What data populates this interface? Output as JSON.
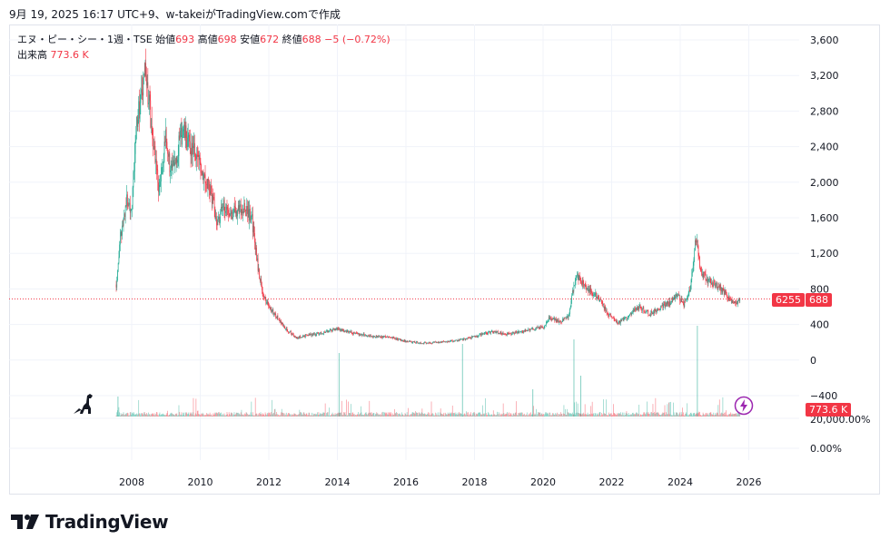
{
  "caption": "9月 19, 2025 16:17 UTC+9、w-takeiがTradingView.comで作成",
  "legend": {
    "symbol": "エヌ・ピー・シー・1週・TSE",
    "open_label": "始値",
    "open": "693",
    "high_label": "高値",
    "high": "698",
    "low_label": "安値",
    "low": "672",
    "close_label": "終値",
    "close": "688",
    "change": "−5 (−0.72%)"
  },
  "volume_legend": {
    "label": "出来高",
    "value": "773.6 K"
  },
  "price_badges": {
    "code": "6255",
    "price": "688",
    "volume": "773.6 K"
  },
  "brand": "TradingView",
  "colors": {
    "up": "#22ab94",
    "down": "#f23645",
    "grid": "#f0f3fa",
    "text": "#131722"
  },
  "icons": [
    "dino-icon",
    "lightning-icon",
    "tradingview-logo-icon"
  ],
  "chart_data": {
    "type": "candlestick",
    "x_ticks": [
      "2008",
      "2010",
      "2012",
      "2014",
      "2016",
      "2018",
      "2020",
      "2022",
      "2024",
      "2026"
    ],
    "y_ticks": [
      "3,600",
      "3,200",
      "2,800",
      "2,400",
      "2,000",
      "1,600",
      "1,200",
      "800",
      "400",
      "0",
      "−400"
    ],
    "volume_axis_ticks": [
      "20,000.00%",
      "0.00%"
    ],
    "ylim": [
      -400,
      3600
    ],
    "last_price": 688,
    "price_path": [
      [
        2007.55,
        850
      ],
      [
        2007.65,
        1300
      ],
      [
        2007.85,
        1800
      ],
      [
        2008.0,
        1700
      ],
      [
        2008.15,
        2700
      ],
      [
        2008.3,
        3000
      ],
      [
        2008.4,
        3250
      ],
      [
        2008.5,
        2900
      ],
      [
        2008.65,
        2400
      ],
      [
        2008.8,
        1900
      ],
      [
        2009.0,
        2500
      ],
      [
        2009.15,
        2100
      ],
      [
        2009.3,
        2300
      ],
      [
        2009.5,
        2600
      ],
      [
        2009.7,
        2400
      ],
      [
        2009.9,
        2300
      ],
      [
        2010.1,
        2100
      ],
      [
        2010.3,
        1900
      ],
      [
        2010.5,
        1550
      ],
      [
        2010.7,
        1750
      ],
      [
        2010.9,
        1650
      ],
      [
        2011.1,
        1700
      ],
      [
        2011.3,
        1700
      ],
      [
        2011.5,
        1600
      ],
      [
        2011.7,
        1000
      ],
      [
        2011.85,
        700
      ],
      [
        2012.0,
        600
      ],
      [
        2012.2,
        500
      ],
      [
        2012.5,
        350
      ],
      [
        2012.8,
        250
      ],
      [
        2013.0,
        270
      ],
      [
        2013.5,
        300
      ],
      [
        2014.0,
        350
      ],
      [
        2014.5,
        300
      ],
      [
        2015.0,
        270
      ],
      [
        2015.5,
        260
      ],
      [
        2016.0,
        210
      ],
      [
        2016.5,
        190
      ],
      [
        2017.0,
        200
      ],
      [
        2017.5,
        220
      ],
      [
        2018.0,
        260
      ],
      [
        2018.5,
        320
      ],
      [
        2019.0,
        290
      ],
      [
        2019.5,
        330
      ],
      [
        2020.0,
        370
      ],
      [
        2020.2,
        480
      ],
      [
        2020.5,
        420
      ],
      [
        2020.75,
        500
      ],
      [
        2020.9,
        850
      ],
      [
        2021.0,
        950
      ],
      [
        2021.3,
        800
      ],
      [
        2021.6,
        700
      ],
      [
        2021.9,
        520
      ],
      [
        2022.2,
        420
      ],
      [
        2022.5,
        500
      ],
      [
        2022.8,
        600
      ],
      [
        2023.1,
        520
      ],
      [
        2023.4,
        580
      ],
      [
        2023.7,
        650
      ],
      [
        2023.9,
        750
      ],
      [
        2024.1,
        620
      ],
      [
        2024.3,
        800
      ],
      [
        2024.45,
        1400
      ],
      [
        2024.6,
        1000
      ],
      [
        2024.8,
        900
      ],
      [
        2025.0,
        850
      ],
      [
        2025.2,
        800
      ],
      [
        2025.4,
        700
      ],
      [
        2025.6,
        650
      ],
      [
        2025.75,
        688
      ]
    ]
  }
}
